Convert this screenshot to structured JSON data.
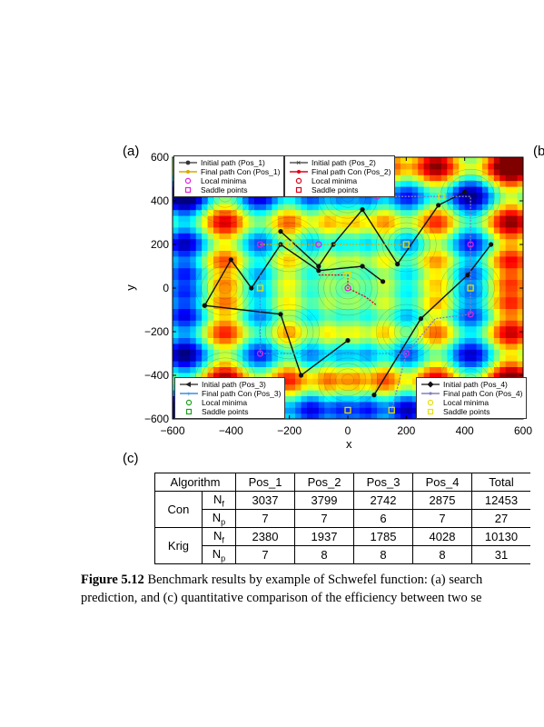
{
  "figure": {
    "panel_a": {
      "label": "(a)",
      "xlabel": "x",
      "ylabel": "y",
      "xticks": [
        "−600",
        "−400",
        "−200",
        "0",
        "200",
        "400",
        "600"
      ],
      "yticks": [
        "600",
        "400",
        "200",
        "0",
        "−200",
        "−400",
        "−600"
      ],
      "legends": [
        {
          "items": [
            "Initial path (Pos_1)",
            "Final path Con (Pos_1)",
            "Local minima",
            "Saddle points"
          ]
        },
        {
          "items": [
            "Initial path (Pos_2)",
            "Final path Con (Pos_2)",
            "Local minima",
            "Saddle points"
          ]
        },
        {
          "items": [
            "Initial path (Pos_3)",
            "Final path Con (Pos_3)",
            "Local minima",
            "Saddle points"
          ]
        },
        {
          "items": [
            "Initial path (Pos_4)",
            "Final path Con (Pos_4)",
            "Local minima",
            "Saddle points"
          ]
        }
      ]
    },
    "panel_b": {
      "label": "(b"
    },
    "panel_c": {
      "label": "(c)"
    }
  },
  "chart_data": {
    "type": "scatter",
    "xlim": [
      -600,
      600
    ],
    "ylim": [
      -600,
      600
    ],
    "series": [
      {
        "name": "Initial path (Pos_1)",
        "points": [
          [
            -490,
            -80
          ],
          [
            -400,
            130
          ],
          [
            -330,
            0
          ],
          [
            -230,
            200
          ],
          [
            -100,
            80
          ],
          [
            50,
            100
          ],
          [
            120,
            30
          ]
        ]
      },
      {
        "name": "Initial path (Pos_2)",
        "points": [
          [
            -230,
            260
          ],
          [
            -100,
            100
          ],
          [
            -50,
            200
          ],
          [
            50,
            360
          ],
          [
            170,
            110
          ],
          [
            310,
            380
          ],
          [
            400,
            440
          ]
        ]
      },
      {
        "name": "Initial path (Pos_3)",
        "points": [
          [
            -490,
            -80
          ],
          [
            -230,
            -120
          ],
          [
            -160,
            -400
          ],
          [
            0,
            -240
          ]
        ]
      },
      {
        "name": "Initial path (Pos_4)",
        "points": [
          [
            90,
            -490
          ],
          [
            250,
            -140
          ],
          [
            410,
            60
          ],
          [
            490,
            200
          ]
        ]
      }
    ],
    "local_minima": [
      [
        -300,
        200
      ],
      [
        -300,
        -300
      ],
      [
        -100,
        200
      ],
      [
        200,
        -300
      ],
      [
        420,
        200
      ],
      [
        420,
        -120
      ],
      [
        0,
        0
      ],
      [
        100,
        420
      ]
    ],
    "saddle_points": [
      [
        -200,
        200
      ],
      [
        -300,
        0
      ],
      [
        0,
        60
      ],
      [
        320,
        420
      ],
      [
        420,
        0
      ],
      [
        200,
        200
      ],
      [
        150,
        -560
      ],
      [
        0,
        -560
      ]
    ]
  },
  "table": {
    "header": [
      "Algorithm",
      "Pos_1",
      "Pos_2",
      "Pos_3",
      "Pos_4",
      "Total"
    ],
    "rows": [
      {
        "alg": "Con",
        "metric": "N",
        "sub": "f",
        "values": [
          "3037",
          "3799",
          "2742",
          "2875",
          "12453"
        ]
      },
      {
        "alg": "",
        "metric": "N",
        "sub": "p",
        "values": [
          "7",
          "7",
          "6",
          "7",
          "27"
        ]
      },
      {
        "alg": "Krig",
        "metric": "N",
        "sub": "f",
        "values": [
          "2380",
          "1937",
          "1785",
          "4028",
          "10130"
        ]
      },
      {
        "alg": "",
        "metric": "N",
        "sub": "p",
        "values": [
          "7",
          "8",
          "8",
          "8",
          "31"
        ]
      }
    ]
  },
  "caption": {
    "label": "Figure 5.12",
    "line1": "Benchmark results by example of Schwefel function: (a) search",
    "line2": "prediction, and (c) quantitative comparison of the efficiency between two se"
  }
}
